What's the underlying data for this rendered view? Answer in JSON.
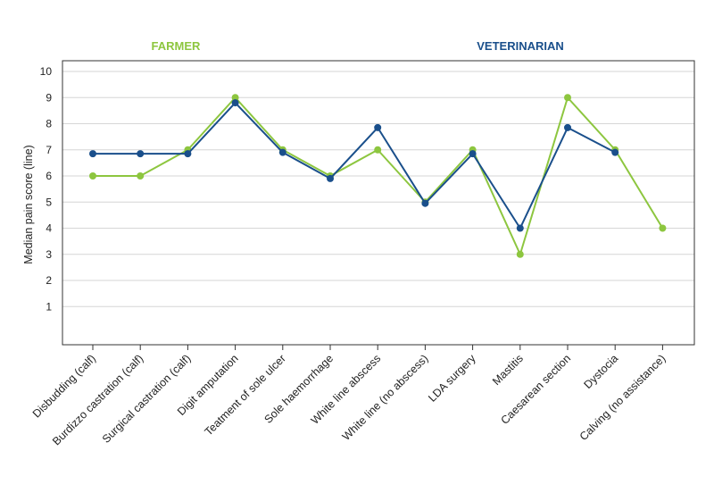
{
  "chart_data": {
    "type": "line",
    "title": "",
    "xlabel": "",
    "ylabel": "Median pain score (line)",
    "ylim": [
      0,
      10
    ],
    "yticks": [
      1,
      2,
      3,
      4,
      5,
      6,
      7,
      8,
      9,
      10
    ],
    "grid": true,
    "legend_position": "top",
    "categories": [
      "Disbudding (calf)",
      "Burdizzo castration (calf)",
      "Surgical castration (calf)",
      "Digit amputation",
      "Teatment of sole ulcer",
      "Sole haemorrhage",
      "White line abscess",
      "White line (no abscess)",
      "LDA surgery",
      "Mastitis",
      "Caesarean section",
      "Dystocia",
      "Calving (no assistance)"
    ],
    "series": [
      {
        "name": "FARMER",
        "color": "#8dc63f",
        "values": [
          6,
          6,
          7,
          9,
          7,
          6,
          7,
          5,
          7,
          3,
          9,
          7,
          4
        ]
      },
      {
        "name": "VETERINARIAN",
        "color": "#1a4f8b",
        "values": [
          6.85,
          6.85,
          6.85,
          8.8,
          6.9,
          5.9,
          7.85,
          4.95,
          6.85,
          4,
          7.85,
          6.9,
          null
        ]
      }
    ]
  }
}
